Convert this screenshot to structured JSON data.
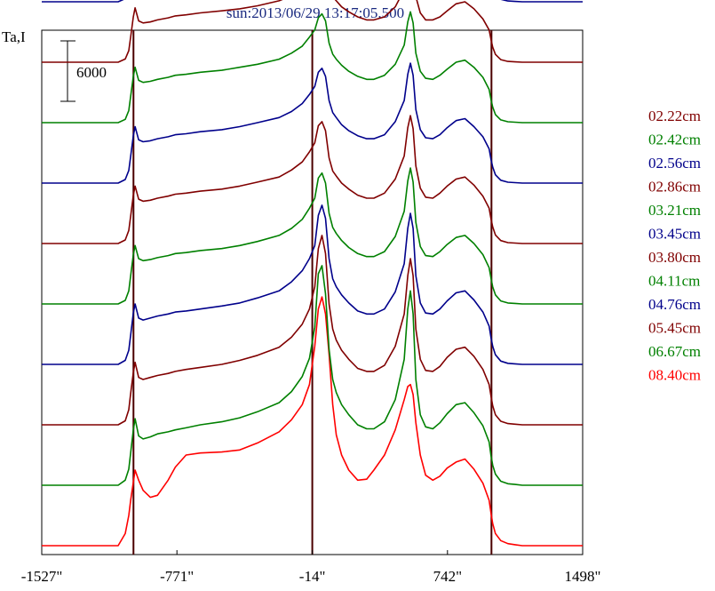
{
  "chart_data": {
    "type": "line",
    "title": "sun:2013/06/29 13:17:05.500",
    "ylabel": "Ta,I",
    "scale_bar_label": "6000",
    "scale_bar_value": 6000,
    "xlim": [
      -1527,
      1498
    ],
    "x_ticks": [
      {
        "value": -1527,
        "label": "-1527\""
      },
      {
        "value": -771,
        "label": "-771\""
      },
      {
        "value": -14,
        "label": "-14\""
      },
      {
        "value": 742,
        "label": "742\""
      },
      {
        "value": 1498,
        "label": "1498\""
      }
    ],
    "vertical_lines": [
      -1014,
      -14,
      988
    ],
    "grid": false,
    "legend_position": "right",
    "profile_x": [
      -1527,
      -1100,
      -1060,
      -1040,
      -1030,
      -1015,
      -1005,
      -985,
      -960,
      -920,
      -880,
      -820,
      -780,
      -720,
      -640,
      -520,
      -420,
      -320,
      -200,
      -130,
      -70,
      -30,
      0,
      20,
      40,
      60,
      80,
      100,
      120,
      150,
      190,
      240,
      290,
      330,
      390,
      450,
      500,
      520,
      535,
      550,
      565,
      590,
      620,
      660,
      700,
      740,
      790,
      840,
      890,
      940,
      975,
      985,
      995,
      1010,
      1040,
      1080,
      1120,
      1160,
      1200,
      1498
    ],
    "series": [
      {
        "name": "08.40cm",
        "color": "#ff0000",
        "offset": 0,
        "y": [
          0,
          0,
          1200,
          3000,
          4500,
          6300,
          7500,
          6500,
          5500,
          4800,
          5000,
          6500,
          7800,
          9000,
          9200,
          9300,
          9500,
          10200,
          11300,
          12500,
          14000,
          16000,
          19800,
          23500,
          24700,
          23000,
          19000,
          14000,
          11000,
          9000,
          7500,
          6500,
          6600,
          7500,
          9000,
          11500,
          14500,
          15800,
          16000,
          15000,
          12200,
          9000,
          7000,
          6500,
          6900,
          7700,
          8300,
          8600,
          7600,
          6200,
          4500,
          3300,
          2200,
          1200,
          500,
          200,
          100,
          0,
          0,
          0
        ]
      },
      {
        "name": "06.67cm",
        "color": "#008000",
        "offset": 6000,
        "y": [
          0,
          0,
          500,
          1600,
          3200,
          5500,
          6600,
          4900,
          4600,
          4800,
          5100,
          5300,
          5500,
          5700,
          6000,
          6300,
          6700,
          7300,
          8200,
          9300,
          10800,
          12600,
          15700,
          21000,
          21800,
          19000,
          13500,
          10500,
          9200,
          8000,
          7000,
          6000,
          5600,
          5600,
          6300,
          8500,
          12500,
          17500,
          19300,
          17000,
          10500,
          7000,
          5800,
          5600,
          6200,
          7100,
          8000,
          8200,
          7200,
          5900,
          4300,
          3000,
          2000,
          1100,
          400,
          150,
          80,
          0,
          0,
          0
        ]
      },
      {
        "name": "05.45cm",
        "color": "#800000",
        "offset": 12000,
        "y": [
          0,
          0,
          400,
          1500,
          3100,
          5200,
          6200,
          4700,
          4500,
          4700,
          4900,
          5100,
          5300,
          5500,
          5700,
          6000,
          6400,
          6900,
          7700,
          8700,
          10000,
          11500,
          13700,
          17500,
          18800,
          17000,
          12000,
          9500,
          8400,
          7400,
          6500,
          5600,
          5300,
          5300,
          5900,
          7800,
          11000,
          14800,
          16500,
          14800,
          9500,
          6500,
          5400,
          5300,
          5800,
          6700,
          7500,
          7700,
          6800,
          5500,
          4000,
          2900,
          1900,
          1000,
          350,
          120,
          60,
          0,
          0,
          0
        ]
      },
      {
        "name": "04.76cm",
        "color": "#00008b",
        "offset": 18000,
        "y": [
          0,
          0,
          400,
          1400,
          2900,
          5100,
          6000,
          4600,
          4400,
          4600,
          4800,
          5000,
          5200,
          5300,
          5500,
          5800,
          6100,
          6600,
          7300,
          8200,
          9300,
          10500,
          11800,
          14800,
          15800,
          14500,
          10500,
          8500,
          7700,
          6900,
          6100,
          5300,
          5000,
          5000,
          5500,
          7200,
          10000,
          13500,
          15000,
          13500,
          8800,
          6100,
          5100,
          5000,
          5500,
          6300,
          7100,
          7300,
          6400,
          5200,
          3800,
          2700,
          1800,
          950,
          330,
          110,
          50,
          0,
          0,
          0
        ]
      },
      {
        "name": "04.11cm",
        "color": "#008000",
        "offset": 24000,
        "y": [
          0,
          0,
          350,
          1300,
          2800,
          4900,
          5800,
          4500,
          4300,
          4400,
          4600,
          4800,
          5000,
          5100,
          5300,
          5500,
          5800,
          6200,
          6800,
          7500,
          8400,
          9500,
          10500,
          12500,
          13000,
          12000,
          9000,
          7600,
          7000,
          6300,
          5600,
          5000,
          4700,
          4700,
          5200,
          6700,
          9200,
          12200,
          13500,
          12100,
          8100,
          5700,
          4800,
          4700,
          5200,
          5900,
          6600,
          6800,
          6000,
          4900,
          3600,
          2600,
          1700,
          900,
          300,
          100,
          50,
          0,
          0,
          0
        ]
      },
      {
        "name": "03.80cm",
        "color": "#800000",
        "offset": 30000,
        "y": [
          0,
          0,
          350,
          1300,
          2700,
          4800,
          5700,
          4400,
          4200,
          4300,
          4500,
          4700,
          4900,
          5000,
          5200,
          5400,
          5700,
          6100,
          6600,
          7300,
          8100,
          9100,
          10000,
          11700,
          12100,
          11200,
          8500,
          7200,
          6700,
          6000,
          5400,
          4800,
          4500,
          4500,
          5000,
          6400,
          8700,
          11500,
          12700,
          11400,
          7700,
          5500,
          4600,
          4500,
          5000,
          5700,
          6400,
          6600,
          5800,
          4700,
          3500,
          2500,
          1650,
          850,
          290,
          90,
          40,
          0,
          0,
          0
        ]
      },
      {
        "name": "03.45cm",
        "color": "#00008b",
        "offset": 36000,
        "y": [
          0,
          0,
          350,
          1250,
          2650,
          4700,
          5600,
          4300,
          4100,
          4200,
          4400,
          4600,
          4800,
          4900,
          5100,
          5300,
          5600,
          6000,
          6500,
          7100,
          7900,
          8800,
          9600,
          11000,
          11400,
          10600,
          8200,
          7000,
          6500,
          5800,
          5200,
          4700,
          4400,
          4400,
          4800,
          6100,
          8200,
          10800,
          11900,
          10700,
          7300,
          5300,
          4500,
          4400,
          4800,
          5500,
          6200,
          6400,
          5600,
          4600,
          3400,
          2400,
          1600,
          820,
          280,
          90,
          40,
          0,
          0,
          0
        ]
      },
      {
        "name": "03.21cm",
        "color": "#008000",
        "offset": 42000,
        "y": [
          0,
          0,
          330,
          1200,
          2600,
          4600,
          5500,
          4200,
          4000,
          4100,
          4300,
          4500,
          4700,
          4800,
          5000,
          5200,
          5500,
          5800,
          6300,
          6900,
          7600,
          8500,
          9200,
          10400,
          10800,
          10100,
          7900,
          6800,
          6300,
          5700,
          5100,
          4600,
          4300,
          4300,
          4700,
          5800,
          7700,
          10000,
          11000,
          9900,
          6900,
          5100,
          4400,
          4300,
          4700,
          5300,
          6000,
          6200,
          5500,
          4500,
          3300,
          2350,
          1550,
          800,
          270,
          85,
          40,
          0,
          0,
          0
        ]
      },
      {
        "name": "02.86cm",
        "color": "#800000",
        "offset": 48000,
        "y": [
          0,
          0,
          320,
          1150,
          2500,
          4500,
          5400,
          4100,
          3900,
          4000,
          4200,
          4400,
          4600,
          4700,
          4900,
          5100,
          5300,
          5600,
          6100,
          6600,
          7300,
          8100,
          8700,
          9700,
          10000,
          9400,
          7500,
          6500,
          6100,
          5500,
          5000,
          4500,
          4200,
          4200,
          4500,
          5500,
          7200,
          9300,
          10200,
          9200,
          6500,
          4900,
          4200,
          4200,
          4500,
          5100,
          5800,
          6000,
          5300,
          4300,
          3200,
          2300,
          1500,
          780,
          260,
          80,
          35,
          0,
          0,
          0
        ]
      },
      {
        "name": "02.56cm",
        "color": "#00008b",
        "offset": 54000,
        "y": [
          0,
          0,
          310,
          1100,
          2450,
          4400,
          5300,
          4000,
          3800,
          3900,
          4100,
          4300,
          4500,
          4600,
          4800,
          5000,
          5200,
          5500,
          5900,
          6400,
          7000,
          7700,
          8200,
          9000,
          9200,
          8700,
          7100,
          6300,
          5900,
          5400,
          4900,
          4400,
          4100,
          4100,
          4400,
          5200,
          6700,
          8500,
          9300,
          8400,
          6200,
          4700,
          4100,
          4100,
          4400,
          5000,
          5600,
          5800,
          5100,
          4200,
          3100,
          2250,
          1450,
          760,
          250,
          80,
          35,
          0,
          0,
          0
        ]
      },
      {
        "name": "02.42cm",
        "color": "#008000",
        "offset": 60000,
        "y": [
          0,
          0,
          300,
          1080,
          2400,
          4350,
          5200,
          3950,
          3750,
          3850,
          4050,
          4250,
          4400,
          4550,
          4750,
          4950,
          5150,
          5400,
          5800,
          6300,
          6850,
          7500,
          7950,
          8600,
          8800,
          8300,
          6900,
          6150,
          5800,
          5300,
          4800,
          4350,
          4050,
          4050,
          4300,
          5100,
          6400,
          8000,
          8700,
          7900,
          5900,
          4600,
          4050,
          4050,
          4350,
          4950,
          5550,
          5700,
          5050,
          4150,
          3050,
          2200,
          1420,
          740,
          245,
          75,
          30,
          0,
          0,
          0
        ]
      },
      {
        "name": "02.22cm",
        "color": "#800000",
        "offset": 66000,
        "y": [
          0,
          0,
          290,
          1050,
          2350,
          4300,
          5100,
          3900,
          3700,
          3800,
          4000,
          4200,
          4350,
          4500,
          4700,
          4900,
          5100,
          5300,
          5700,
          6100,
          6600,
          7200,
          7600,
          8000,
          8100,
          7800,
          6700,
          6000,
          5700,
          5200,
          4750,
          4300,
          4000,
          4000,
          4200,
          4800,
          5800,
          7000,
          7500,
          6900,
          5500,
          4400,
          3950,
          3950,
          4250,
          4850,
          5450,
          5600,
          4950,
          4100,
          3000,
          2150,
          1400,
          720,
          240,
          70,
          30,
          0,
          0,
          0
        ]
      }
    ]
  }
}
